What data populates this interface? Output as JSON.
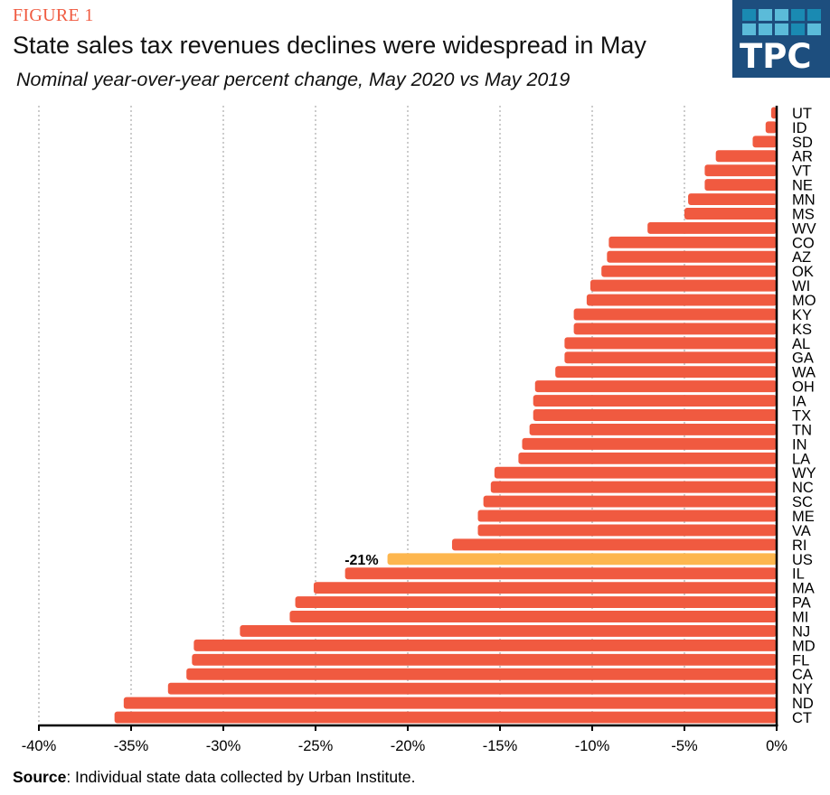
{
  "figure_label": "FIGURE 1",
  "logo": {
    "text": "TPC",
    "background": "#1D4E7E",
    "squares_row1": [
      "#1A8AB2",
      "#5BBBD9",
      "#5BBBD9",
      "#1A8AB2",
      "#1A8AB2"
    ],
    "squares_row2": [
      "#5BBBD9",
      "#5BBBD9",
      "#5BBBD9",
      "#1A8AB2",
      "#5BBBD9"
    ]
  },
  "source": {
    "label": "Source",
    "text": ": Individual  state data collected by Urban Institute."
  },
  "colors": {
    "bar": "#F05A40",
    "highlight": "#FDB64E",
    "grid": "#CCCCCC",
    "axis": "#000000"
  },
  "chart_data": {
    "type": "bar",
    "orientation": "horizontal",
    "title": "State sales tax revenues declines were widespread in May",
    "subtitle": "Nominal year-over-year percent change, May 2020 vs May 2019",
    "xlabel": "",
    "ylabel": "",
    "xlim": [
      -40,
      0
    ],
    "xticks": [
      -40,
      -35,
      -30,
      -25,
      -20,
      -15,
      -10,
      -5,
      0
    ],
    "xtick_labels": [
      "-40%",
      "-35%",
      "-30%",
      "-25%",
      "-20%",
      "-15%",
      "-10%",
      "-5%",
      "0%"
    ],
    "grid": "vertical dotted",
    "category_axis_position": "right",
    "categories": [
      "UT",
      "ID",
      "SD",
      "AR",
      "VT",
      "NE",
      "MN",
      "MS",
      "WV",
      "CO",
      "AZ",
      "OK",
      "WI",
      "MO",
      "KY",
      "KS",
      "AL",
      "GA",
      "WA",
      "OH",
      "IA",
      "TX",
      "TN",
      "IN",
      "LA",
      "WY",
      "NC",
      "SC",
      "ME",
      "VA",
      "RI",
      "US",
      "IL",
      "MA",
      "PA",
      "MI",
      "NJ",
      "MD",
      "FL",
      "CA",
      "NY",
      "ND",
      "CT"
    ],
    "values": [
      -0.3,
      -0.6,
      -1.3,
      -3.3,
      -3.9,
      -3.9,
      -4.8,
      -5.0,
      -7.0,
      -9.1,
      -9.2,
      -9.5,
      -10.1,
      -10.3,
      -11.0,
      -11.0,
      -11.5,
      -11.5,
      -12.0,
      -13.1,
      -13.2,
      -13.2,
      -13.4,
      -13.8,
      -14.0,
      -15.3,
      -15.5,
      -15.9,
      -16.2,
      -16.2,
      -17.6,
      -21.1,
      -23.4,
      -25.1,
      -26.1,
      -26.4,
      -29.1,
      -31.6,
      -31.7,
      -32.0,
      -33.0,
      -35.4,
      -35.9
    ],
    "highlight_category": "US",
    "annotations": [
      {
        "category": "US",
        "text": "-21%"
      }
    ]
  }
}
